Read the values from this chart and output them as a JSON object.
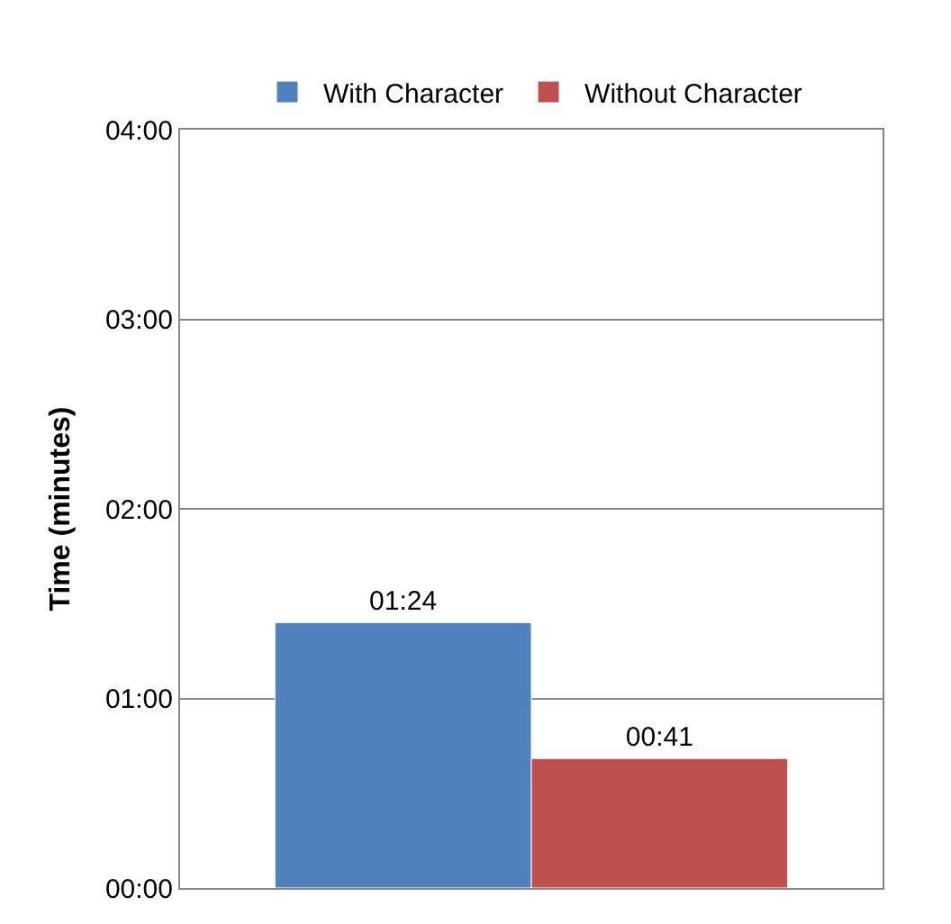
{
  "chart_data": {
    "type": "bar",
    "ylabel": "Time (minutes)",
    "categories": [
      null
    ],
    "series": [
      {
        "name": "With Character",
        "color": "#4f81bd",
        "values": [
          1.4
        ],
        "value_labels": [
          "01:24"
        ]
      },
      {
        "name": "Without Character",
        "color": "#c0504d",
        "values": [
          0.683
        ],
        "value_labels": [
          "00:41"
        ]
      }
    ],
    "ylim": [
      0,
      4
    ],
    "yticks": [
      {
        "value": 0,
        "label": "00:00"
      },
      {
        "value": 1,
        "label": "01:00"
      },
      {
        "value": 2,
        "label": "02:00"
      },
      {
        "value": 3,
        "label": "03:00"
      },
      {
        "value": 4,
        "label": "04:00"
      }
    ],
    "grid": "y",
    "legend": "top"
  }
}
